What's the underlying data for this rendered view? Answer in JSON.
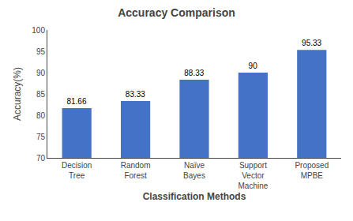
{
  "chart_data": {
    "type": "bar",
    "title": "Accuracy Comparison",
    "xlabel": "Classification Methods",
    "ylabel": "Accuracy(%)",
    "categories": [
      "Decision\nTree",
      "Random\nForest",
      "Naïve\nBayes",
      "Support\nVector\nMachine",
      "Proposed\nMPBE"
    ],
    "values": [
      81.66,
      83.33,
      88.33,
      90,
      95.33
    ],
    "color": "#4472c4",
    "ylim": [
      70,
      100
    ],
    "yticks": [
      70,
      75,
      80,
      85,
      90,
      95,
      100
    ],
    "grid": false,
    "data_labels": true
  }
}
